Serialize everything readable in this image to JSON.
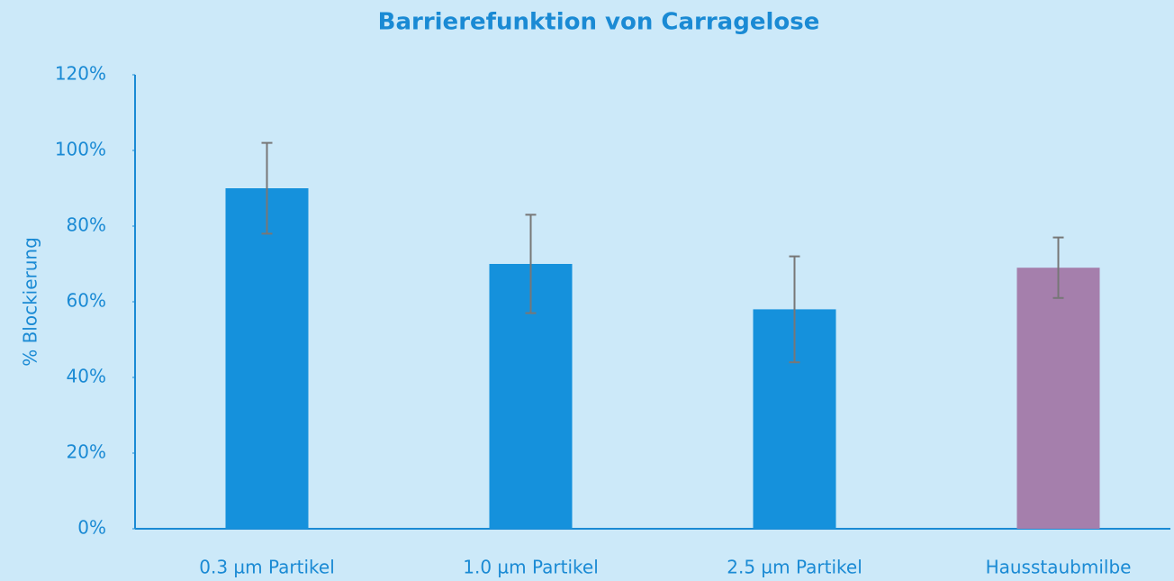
{
  "chart_data": {
    "type": "bar",
    "title": "Barrierefunktion von Carragelose",
    "y_label": "% Blockierung",
    "categories": [
      "0.3 µm Partikel",
      "1.0 µm Partikel",
      "2.5 µm Partikel",
      "Hausstaubmilbe"
    ],
    "values": [
      90,
      70,
      58,
      69
    ],
    "errors": [
      12,
      13,
      14,
      8
    ],
    "colors": [
      "#1591dc",
      "#1591dc",
      "#1591dc",
      "#a57fac"
    ],
    "ylim": [
      0,
      120
    ],
    "yticks": [
      {
        "value": 0,
        "label": "0%"
      },
      {
        "value": 20,
        "label": "20%"
      },
      {
        "value": 40,
        "label": "40%"
      },
      {
        "value": 60,
        "label": "60%"
      },
      {
        "value": 80,
        "label": "80%"
      },
      {
        "value": 100,
        "label": "100%"
      },
      {
        "value": 120,
        "label": "120%"
      }
    ],
    "grid": false
  }
}
